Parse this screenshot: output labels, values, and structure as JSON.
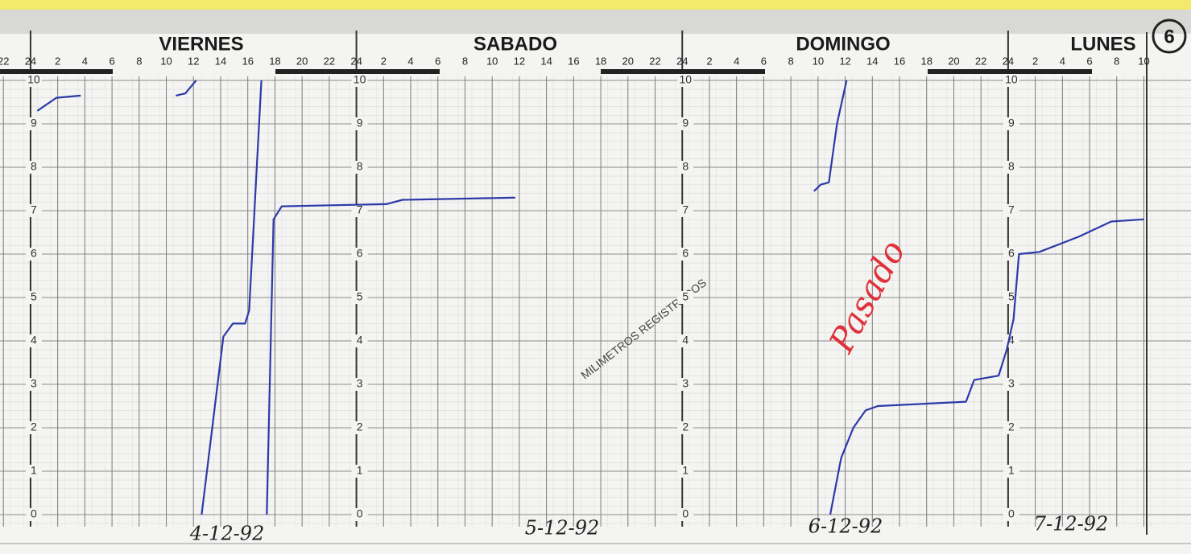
{
  "chart_data": {
    "type": "line",
    "days": [
      "VIERNES",
      "SABADO",
      "DOMINGO",
      "LUNES"
    ],
    "dates": [
      "4-12-92",
      "5-12-92",
      "6-12-92",
      "7-12-92"
    ],
    "annotations": [
      "MILIMETROS REGISTRADOS",
      "Pasado",
      "6"
    ],
    "x": [
      0.5,
      1.9,
      3.7,
      null,
      10.7,
      11.4,
      12.2,
      null,
      12.6,
      14.2,
      14.9,
      15.8,
      16.1,
      17.0,
      null,
      17.4,
      17.9,
      18.5,
      26.2,
      27.4,
      35.7,
      null,
      57.7,
      58.2,
      58.8,
      59.4,
      60.1,
      null,
      58.9,
      59.7,
      60.6,
      61.5,
      62.4,
      68.9,
      69.5,
      71.3,
      71.9,
      72.4,
      72.8,
      74.3,
      77.2,
      79.6,
      82.0
    ],
    "values": [
      9.3,
      9.6,
      9.65,
      null,
      9.65,
      9.7,
      10,
      null,
      0,
      4.1,
      4.4,
      4.4,
      4.7,
      10,
      null,
      0,
      6.8,
      7.1,
      7.15,
      7.25,
      7.3,
      null,
      7.45,
      7.6,
      7.65,
      9,
      10,
      null,
      0,
      1.3,
      2.0,
      2.4,
      2.5,
      2.6,
      3.1,
      3.2,
      3.8,
      4.5,
      6.0,
      6.05,
      6.4,
      6.75,
      6.8
    ],
    "color": "#2b3aa8",
    "xlim": [
      -2.25,
      85.47
    ],
    "ylim": [
      0,
      10
    ],
    "xticks": [
      {
        "value": -2,
        "label": "22"
      },
      {
        "value": 0,
        "label": "24"
      },
      2,
      4,
      6,
      8,
      10,
      12,
      14,
      16,
      18,
      20,
      22,
      24,
      {
        "value": 26,
        "label": "2"
      },
      {
        "value": 28,
        "label": "4"
      },
      {
        "value": 30,
        "label": "6"
      },
      {
        "value": 32,
        "label": "8"
      },
      {
        "value": 34,
        "label": "10"
      },
      {
        "value": 36,
        "label": "12"
      },
      {
        "value": 38,
        "label": "14"
      },
      {
        "value": 40,
        "label": "16"
      },
      {
        "value": 42,
        "label": "18"
      },
      {
        "value": 44,
        "label": "20"
      },
      {
        "value": 46,
        "label": "22"
      },
      {
        "value": 48,
        "label": "24"
      },
      {
        "value": 50,
        "label": "2"
      },
      {
        "value": 52,
        "label": "4"
      },
      {
        "value": 54,
        "label": "6"
      },
      {
        "value": 56,
        "label": "8"
      },
      {
        "value": 58,
        "label": "10"
      },
      {
        "value": 60,
        "label": "12"
      },
      {
        "value": 62,
        "label": "14"
      },
      {
        "value": 64,
        "label": "16"
      },
      {
        "value": 66,
        "label": "18"
      },
      {
        "value": 68,
        "label": "20"
      },
      {
        "value": 70,
        "label": "22"
      },
      {
        "value": 72,
        "label": "24"
      },
      {
        "value": 74,
        "label": "2"
      },
      {
        "value": 76,
        "label": "4"
      },
      {
        "value": 78,
        "label": "6"
      },
      {
        "value": 80,
        "label": "8"
      },
      {
        "value": 82,
        "label": "10"
      }
    ],
    "yticks": [
      0,
      1,
      2,
      3,
      4,
      5,
      6,
      7,
      8,
      9,
      10
    ],
    "grid": true
  }
}
